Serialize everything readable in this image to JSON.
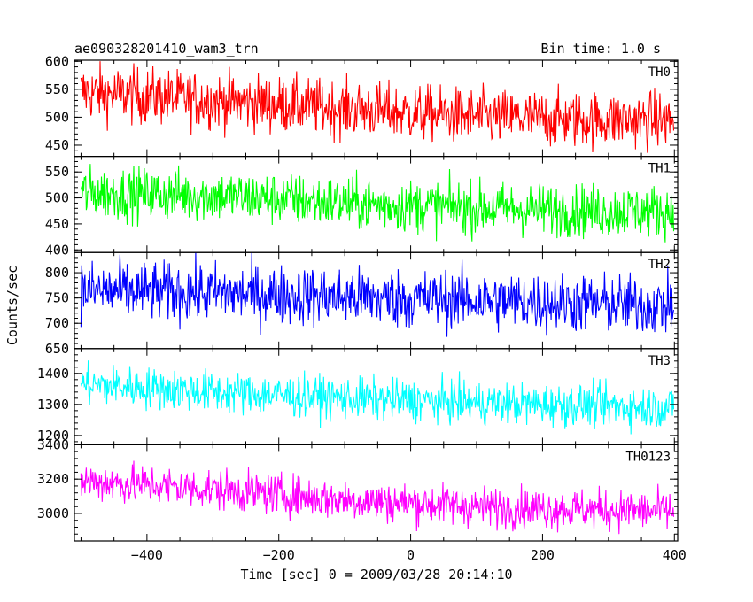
{
  "header": {
    "title": "ae090328201410_wam3_trn",
    "bin_time": "Bin time: 1.0 s"
  },
  "chart_data": {
    "type": "line",
    "title": "ae090328201410_wam3_trn",
    "xlabel": "Time [sec] 0 = 2009/03/28 20:14:10",
    "ylabel": "Counts/sec",
    "xlim": [
      -510,
      405
    ],
    "x_range": [
      -500,
      399
    ],
    "x_ticks": [
      -400,
      -200,
      0,
      200,
      400
    ],
    "x_tick_labels": [
      "−400",
      "−200",
      "0",
      "200",
      "400"
    ],
    "grid": false,
    "panels": [
      {
        "name": "TH0",
        "color": "#ff0000",
        "ylim": [
          430,
          602
        ],
        "y_ticks": [
          450,
          500,
          550,
          600
        ],
        "y_tick_labels": [
          "450",
          "500",
          "550",
          "600"
        ],
        "trend": [
          [
            -500,
            545
          ],
          [
            -300,
            530
          ],
          [
            -100,
            515
          ],
          [
            100,
            500
          ],
          [
            300,
            495
          ],
          [
            399,
            495
          ]
        ],
        "scatter": 30
      },
      {
        "name": "TH1",
        "color": "#00ff00",
        "ylim": [
          395,
          580
        ],
        "y_ticks": [
          400,
          450,
          500,
          550
        ],
        "y_tick_labels": [
          "400",
          "450",
          "500",
          "550"
        ],
        "trend": [
          [
            -500,
            510
          ],
          [
            -300,
            505
          ],
          [
            -100,
            490
          ],
          [
            100,
            480
          ],
          [
            300,
            475
          ],
          [
            399,
            475
          ]
        ],
        "scatter": 30
      },
      {
        "name": "TH2",
        "color": "#0000ff",
        "ylim": [
          650,
          840
        ],
        "y_ticks": [
          650,
          700,
          750,
          800
        ],
        "y_tick_labels": [
          "650",
          "700",
          "750",
          "800"
        ],
        "trend": [
          [
            -500,
            765
          ],
          [
            -300,
            760
          ],
          [
            -100,
            752
          ],
          [
            100,
            745
          ],
          [
            300,
            738
          ],
          [
            399,
            735
          ]
        ],
        "scatter": 35
      },
      {
        "name": "TH3",
        "color": "#00ffff",
        "ylim": [
          1170,
          1480
        ],
        "y_ticks": [
          1200,
          1300,
          1400
        ],
        "y_tick_labels": [
          "1200",
          "1300",
          "1400"
        ],
        "trend": [
          [
            -500,
            1365
          ],
          [
            -300,
            1340
          ],
          [
            -100,
            1320
          ],
          [
            100,
            1305
          ],
          [
            300,
            1295
          ],
          [
            399,
            1290
          ]
        ],
        "scatter": 40
      },
      {
        "name": "TH0123",
        "color": "#ff00ff",
        "ylim": [
          2840,
          3400
        ],
        "y_ticks": [
          3000,
          3200,
          3400
        ],
        "y_tick_labels": [
          "3000",
          "3200",
          "3400"
        ],
        "trend": [
          [
            -500,
            3190
          ],
          [
            -300,
            3140
          ],
          [
            -100,
            3080
          ],
          [
            100,
            3040
          ],
          [
            300,
            3020
          ],
          [
            399,
            3010
          ]
        ],
        "scatter": 70
      }
    ]
  }
}
